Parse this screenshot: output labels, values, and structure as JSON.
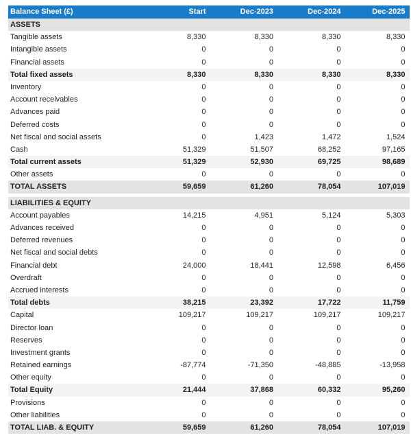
{
  "header": {
    "title": "Balance Sheet (£)",
    "columns": [
      "Start",
      "Dec-2023",
      "Dec-2024",
      "Dec-2025"
    ]
  },
  "colors": {
    "header_bg": "#1a7bc9",
    "section_bg": "#e3e3e3",
    "total_bg": "#f3f3f3"
  },
  "assets": {
    "title": "ASSETS",
    "rows": [
      {
        "label": "Tangible assets",
        "values": [
          "8,330",
          "8,330",
          "8,330",
          "8,330"
        ],
        "style": "normal"
      },
      {
        "label": "Intangible assets",
        "values": [
          "0",
          "0",
          "0",
          "0"
        ],
        "style": "normal"
      },
      {
        "label": "Financial assets",
        "values": [
          "0",
          "0",
          "0",
          "0"
        ],
        "style": "normal"
      },
      {
        "label": "Total fixed assets",
        "values": [
          "8,330",
          "8,330",
          "8,330",
          "8,330"
        ],
        "style": "tot"
      },
      {
        "label": "Inventory",
        "values": [
          "0",
          "0",
          "0",
          "0"
        ],
        "style": "normal"
      },
      {
        "label": "Account receivables",
        "values": [
          "0",
          "0",
          "0",
          "0"
        ],
        "style": "normal"
      },
      {
        "label": "Advances paid",
        "values": [
          "0",
          "0",
          "0",
          "0"
        ],
        "style": "normal"
      },
      {
        "label": "Deferred costs",
        "values": [
          "0",
          "0",
          "0",
          "0"
        ],
        "style": "normal"
      },
      {
        "label": "Net fiscal and social assets",
        "values": [
          "0",
          "1,423",
          "1,472",
          "1,524"
        ],
        "style": "normal"
      },
      {
        "label": "Cash",
        "values": [
          "51,329",
          "51,507",
          "68,252",
          "97,165"
        ],
        "style": "normal"
      },
      {
        "label": "Total current assets",
        "values": [
          "51,329",
          "52,930",
          "69,725",
          "98,689"
        ],
        "style": "tot"
      },
      {
        "label": "Other assets",
        "values": [
          "0",
          "0",
          "0",
          "0"
        ],
        "style": "normal"
      },
      {
        "label": "TOTAL ASSETS",
        "values": [
          "59,659",
          "61,260",
          "78,054",
          "107,019"
        ],
        "style": "grand"
      }
    ]
  },
  "liabilities": {
    "title": "LIABILITIES & EQUITY",
    "rows": [
      {
        "label": "Account payables",
        "values": [
          "14,215",
          "4,951",
          "5,124",
          "5,303"
        ],
        "style": "normal"
      },
      {
        "label": "Advances received",
        "values": [
          "0",
          "0",
          "0",
          "0"
        ],
        "style": "normal"
      },
      {
        "label": "Deferred revenues",
        "values": [
          "0",
          "0",
          "0",
          "0"
        ],
        "style": "normal"
      },
      {
        "label": "Net fiscal and social debts",
        "values": [
          "0",
          "0",
          "0",
          "0"
        ],
        "style": "normal"
      },
      {
        "label": "Financial debt",
        "values": [
          "24,000",
          "18,441",
          "12,598",
          "6,456"
        ],
        "style": "normal"
      },
      {
        "label": "Overdraft",
        "values": [
          "0",
          "0",
          "0",
          "0"
        ],
        "style": "normal"
      },
      {
        "label": "Accrued interests",
        "values": [
          "0",
          "0",
          "0",
          "0"
        ],
        "style": "normal"
      },
      {
        "label": "Total debts",
        "values": [
          "38,215",
          "23,392",
          "17,722",
          "11,759"
        ],
        "style": "tot"
      },
      {
        "label": "Capital",
        "values": [
          "109,217",
          "109,217",
          "109,217",
          "109,217"
        ],
        "style": "normal"
      },
      {
        "label": "Director loan",
        "values": [
          "0",
          "0",
          "0",
          "0"
        ],
        "style": "normal"
      },
      {
        "label": "Reserves",
        "values": [
          "0",
          "0",
          "0",
          "0"
        ],
        "style": "normal"
      },
      {
        "label": "Investment grants",
        "values": [
          "0",
          "0",
          "0",
          "0"
        ],
        "style": "normal"
      },
      {
        "label": "Retained earnings",
        "values": [
          "-87,774",
          "-71,350",
          "-48,885",
          "-13,958"
        ],
        "style": "normal"
      },
      {
        "label": "Other equity",
        "values": [
          "0",
          "0",
          "0",
          "0"
        ],
        "style": "normal"
      },
      {
        "label": "Total Equity",
        "values": [
          "21,444",
          "37,868",
          "60,332",
          "95,260"
        ],
        "style": "tot"
      },
      {
        "label": "Provisions",
        "values": [
          "0",
          "0",
          "0",
          "0"
        ],
        "style": "normal"
      },
      {
        "label": "Other liabilities",
        "values": [
          "0",
          "0",
          "0",
          "0"
        ],
        "style": "normal"
      },
      {
        "label": "TOTAL LIAB. & EQUITY",
        "values": [
          "59,659",
          "61,260",
          "78,054",
          "107,019"
        ],
        "style": "grand"
      }
    ]
  }
}
